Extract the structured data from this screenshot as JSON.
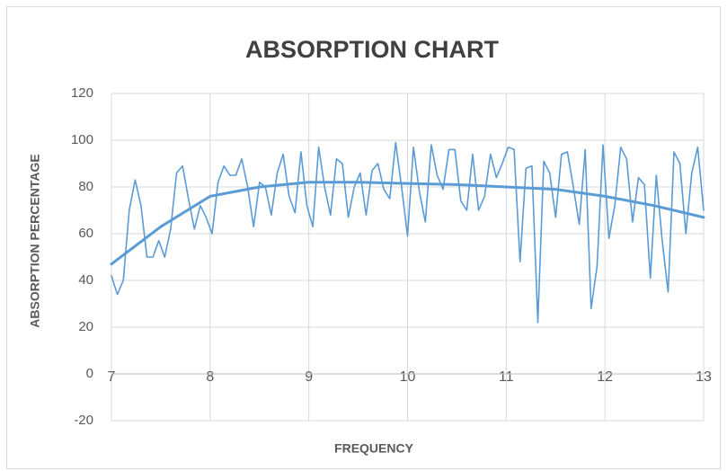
{
  "chart_data": {
    "type": "line",
    "title": "ABSORPTION CHART",
    "x_label": "FREQUENCY",
    "y_label": "ABSORPTION PERCENTAGE",
    "x": [
      7,
      7.06,
      7.12,
      7.18,
      7.24,
      7.3,
      7.36,
      7.42,
      7.48,
      7.54,
      7.6,
      7.66,
      7.72,
      7.78,
      7.84,
      7.9,
      7.96,
      8.02,
      8.08,
      8.14,
      8.2,
      8.26,
      8.32,
      8.38,
      8.44,
      8.5,
      8.56,
      8.62,
      8.68,
      8.74,
      8.8,
      8.86,
      8.92,
      8.98,
      9.04,
      9.1,
      9.16,
      9.22,
      9.28,
      9.34,
      9.4,
      9.46,
      9.52,
      9.58,
      9.64,
      9.7,
      9.76,
      9.82,
      9.88,
      9.94,
      10,
      10.06,
      10.12,
      10.18,
      10.24,
      10.3,
      10.36,
      10.42,
      10.48,
      10.54,
      10.6,
      10.66,
      10.72,
      10.78,
      10.84,
      10.9,
      10.96,
      11.02,
      11.08,
      11.14,
      11.2,
      11.26,
      11.32,
      11.38,
      11.44,
      11.5,
      11.56,
      11.62,
      11.68,
      11.74,
      11.8,
      11.86,
      11.92,
      11.98,
      12.04,
      12.1,
      12.16,
      12.22,
      12.28,
      12.34,
      12.4,
      12.46,
      12.52,
      12.58,
      12.64,
      12.7,
      12.76,
      12.82,
      12.88,
      12.94,
      13
    ],
    "series": [
      {
        "color": "#5b9bd5",
        "values": [
          42,
          34,
          40,
          70,
          83,
          72,
          50,
          50,
          57,
          50,
          62,
          86,
          89,
          75,
          62,
          72,
          67,
          60,
          82,
          89,
          85,
          85,
          92,
          80,
          63,
          82,
          80,
          68,
          86,
          94,
          76,
          69,
          95,
          72,
          63,
          97,
          80,
          68,
          92,
          90,
          67,
          80,
          86,
          68,
          87,
          90,
          79,
          75,
          99,
          80,
          59,
          97,
          78,
          65,
          98,
          85,
          79,
          96,
          96,
          74,
          70,
          94,
          70,
          76,
          94,
          84,
          90,
          97,
          96,
          48,
          88,
          89,
          22,
          91,
          86,
          67,
          94,
          95,
          80,
          64,
          96,
          28,
          46,
          98,
          58,
          72,
          97,
          92,
          65,
          84,
          81,
          41,
          85,
          57,
          35,
          95,
          90,
          60,
          86,
          97,
          70
        ]
      },
      {
        "color": "#5b9bd5",
        "x": [
          7,
          7.5,
          8,
          8.5,
          9,
          9.5,
          10,
          10.5,
          11,
          11.5,
          12,
          12.5,
          13
        ],
        "values": [
          47,
          63,
          76,
          80,
          82,
          82,
          81.5,
          81,
          80,
          79,
          76,
          72,
          67
        ]
      }
    ],
    "xlim": [
      7,
      13
    ],
    "xticks": [
      7,
      8,
      9,
      10,
      11,
      12,
      13
    ],
    "ylim": [
      -20,
      120
    ],
    "yticks": [
      -20,
      0,
      20,
      40,
      60,
      80,
      100,
      120
    ],
    "grid": true
  }
}
